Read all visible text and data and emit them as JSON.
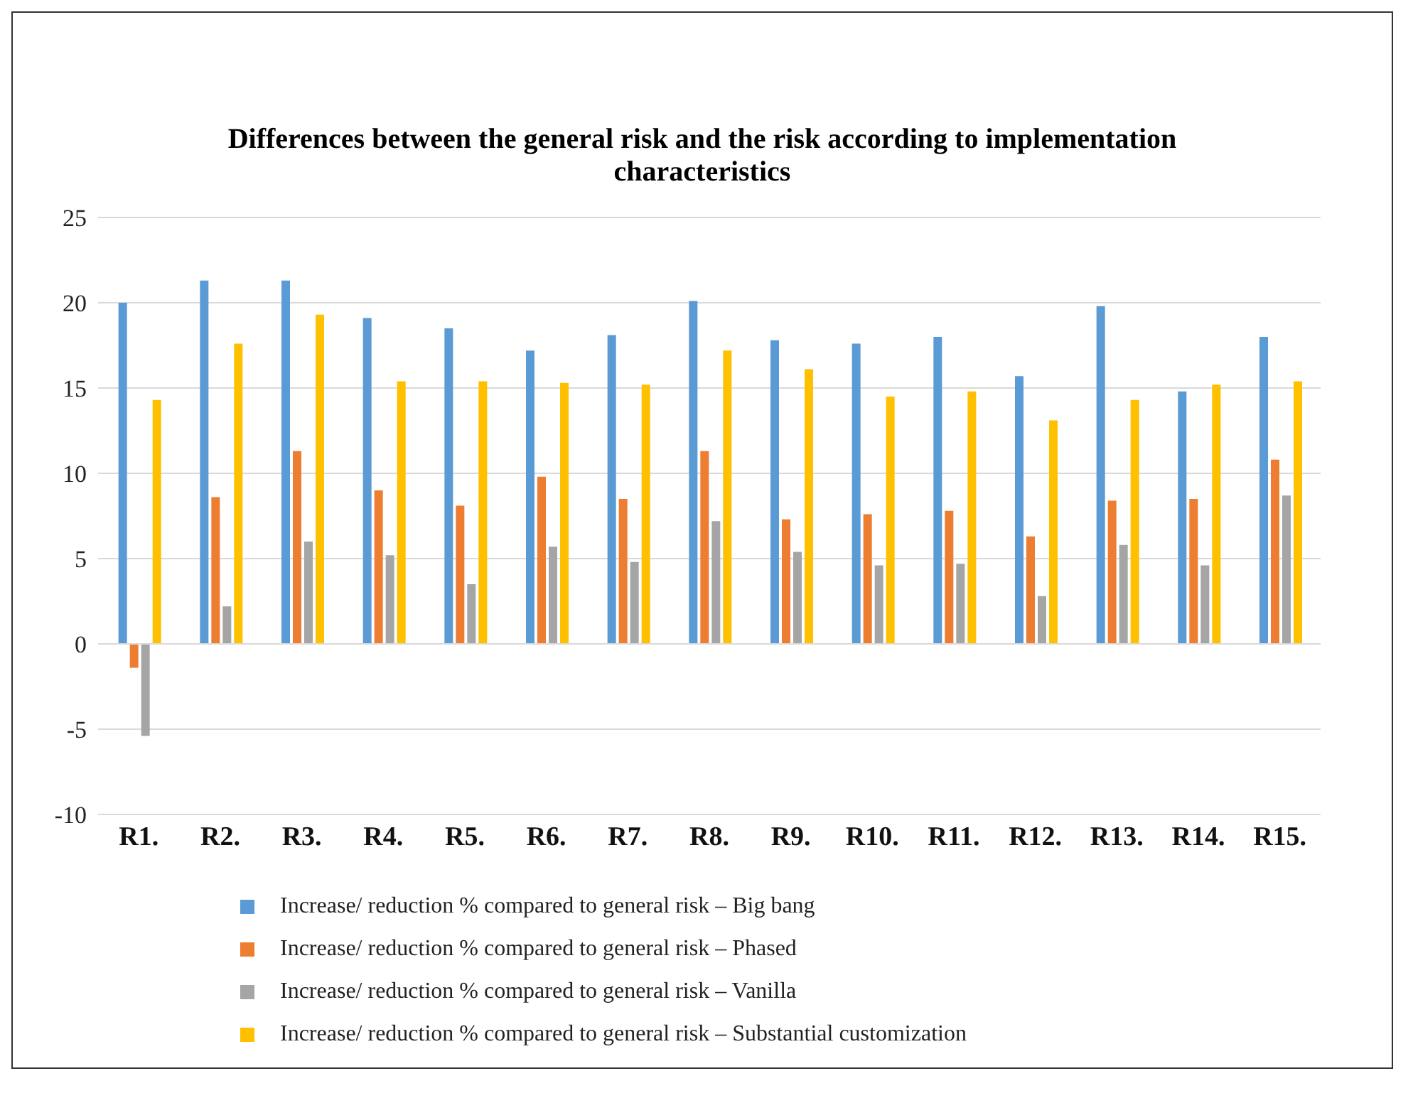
{
  "chart_data": {
    "type": "bar",
    "title": "Differences between the general risk and the risk according to implementation characteristics",
    "categories": [
      "R1.",
      "R2.",
      "R3.",
      "R4.",
      "R5.",
      "R6.",
      "R7.",
      "R8.",
      "R9.",
      "R10.",
      "R11.",
      "R12.",
      "R13.",
      "R14.",
      "R15."
    ],
    "series": [
      {
        "name": "Increase/ reduction % compared to general risk – Big bang",
        "color": "#5b9bd5",
        "values": [
          20.0,
          21.3,
          21.3,
          19.1,
          18.5,
          17.2,
          18.1,
          20.1,
          17.8,
          17.6,
          18.0,
          15.7,
          19.8,
          14.8,
          18.0
        ]
      },
      {
        "name": "Increase/ reduction % compared to general risk – Phased",
        "color": "#ed7d31",
        "values": [
          -1.4,
          8.6,
          11.3,
          9.0,
          8.1,
          9.8,
          8.5,
          11.3,
          7.3,
          7.6,
          7.8,
          6.3,
          8.4,
          8.5,
          10.8
        ]
      },
      {
        "name": "Increase/ reduction % compared to general risk – Vanilla",
        "color": "#a5a5a5",
        "values": [
          -5.4,
          2.2,
          6.0,
          5.2,
          3.5,
          5.7,
          4.8,
          7.2,
          5.4,
          4.6,
          4.7,
          2.8,
          5.8,
          4.6,
          8.7
        ]
      },
      {
        "name": "Increase/ reduction % compared to general risk – Substantial customization",
        "color": "#ffc000",
        "values": [
          14.3,
          17.6,
          19.3,
          15.4,
          15.4,
          15.3,
          15.2,
          17.2,
          16.1,
          14.5,
          14.8,
          13.1,
          14.3,
          15.2,
          15.4
        ]
      }
    ],
    "ylim": [
      -10,
      25
    ],
    "yticks": [
      -10,
      -5,
      0,
      5,
      10,
      15,
      20,
      25
    ],
    "grid": "y",
    "legend": "bottom"
  }
}
